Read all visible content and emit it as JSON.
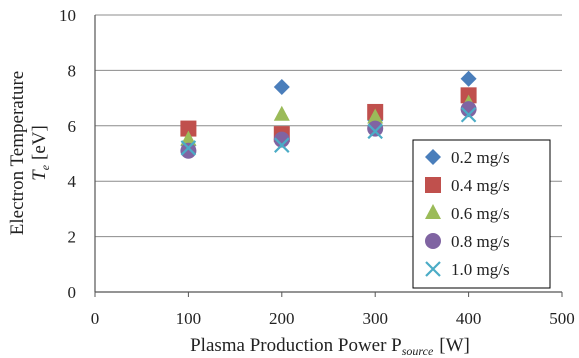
{
  "chart_data": {
    "type": "scatter",
    "xlabel": "Plasma Production Power P",
    "xlabel_sub": "source",
    "xlabel_unit": "[W]",
    "ylabel_line1": "Electron Temperature",
    "ylabel_var": "T",
    "ylabel_sub": "e",
    "ylabel_unit": "[eV]",
    "xlim": [
      0,
      500
    ],
    "ylim": [
      0,
      10
    ],
    "xticks": [
      0,
      100,
      200,
      300,
      400,
      500
    ],
    "yticks": [
      0,
      2,
      4,
      6,
      8,
      10
    ],
    "xtick_labels": [
      "0",
      "100",
      "200",
      "300",
      "400",
      "500"
    ],
    "ytick_labels": [
      "0",
      "2",
      "4",
      "6",
      "8",
      "10"
    ],
    "grid": "horizontal",
    "legend_position": "bottom-right",
    "series": [
      {
        "name": "0.2 mg/s",
        "marker": "diamond",
        "color": "#4a7ebb",
        "x": [
          100,
          200,
          300,
          400
        ],
        "y": [
          5.3,
          7.4,
          6.2,
          7.7
        ]
      },
      {
        "name": "0.4 mg/s",
        "marker": "square",
        "color": "#c0504d",
        "x": [
          100,
          200,
          300,
          400
        ],
        "y": [
          5.9,
          5.7,
          6.5,
          7.1
        ]
      },
      {
        "name": "0.6 mg/s",
        "marker": "triangle",
        "color": "#9bbb59",
        "x": [
          100,
          200,
          300,
          400
        ],
        "y": [
          5.5,
          6.4,
          6.3,
          6.8
        ]
      },
      {
        "name": "0.8 mg/s",
        "marker": "circle",
        "color": "#8064a2",
        "x": [
          100,
          200,
          300,
          400
        ],
        "y": [
          5.1,
          5.5,
          5.9,
          6.6
        ]
      },
      {
        "name": "1.0 mg/s",
        "marker": "x",
        "color": "#4bacc6",
        "x": [
          100,
          200,
          300,
          400
        ],
        "y": [
          5.2,
          5.3,
          5.8,
          6.4
        ]
      }
    ]
  }
}
